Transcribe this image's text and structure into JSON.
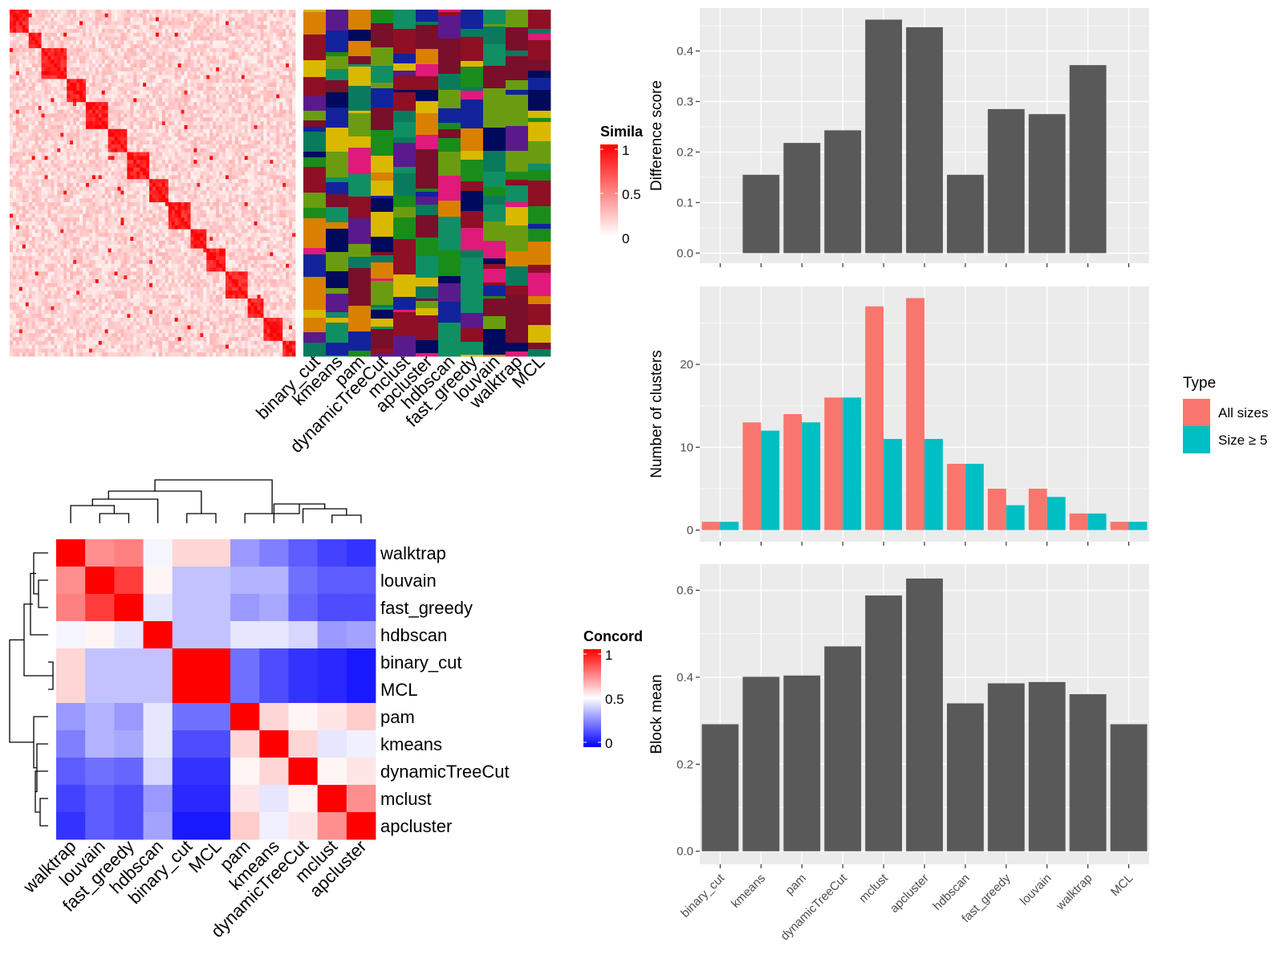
{
  "colors": {
    "panel_bg": "#ebebeb",
    "grid": "#ffffff",
    "bar": "#595959",
    "all_sizes": "#f8766d",
    "size_ge5": "#00bfc4",
    "sim_low": "#ffffff",
    "sim_high": "#ff0000",
    "conc_low": "#0000ff",
    "conc_mid": "#ffffff",
    "conc_high": "#ff0000",
    "class_palette": [
      "#0f8f63",
      "#0a7a5c",
      "#12239c",
      "#8f0f25",
      "#6a9c12",
      "#1a8c1a",
      "#e01a7a",
      "#d98000",
      "#000a5c",
      "#5a1a8c",
      "#d9b800",
      "#7a0f2a"
    ]
  },
  "similarity_heatmap": {
    "legend_title": "Simila",
    "legend_ticks": [
      "1",
      "0.5",
      "0"
    ],
    "method_labels": [
      "binary_cut",
      "kmeans",
      "pam",
      "dynamicTreeCut",
      "mclust",
      "apcluster",
      "hdbscan",
      "fast_greedy",
      "louvain",
      "walktrap",
      "MCL"
    ]
  },
  "concordance_heatmap": {
    "legend_title": "Concord",
    "legend_ticks": [
      "1",
      "0.5",
      "0"
    ],
    "methods": [
      "walktrap",
      "louvain",
      "fast_greedy",
      "hdbscan",
      "binary_cut",
      "MCL",
      "pam",
      "kmeans",
      "dynamicTreeCut",
      "mclust",
      "apcluster"
    ],
    "matrix": [
      [
        1.0,
        0.72,
        0.75,
        0.48,
        0.58,
        0.58,
        0.3,
        0.25,
        0.18,
        0.13,
        0.1
      ],
      [
        0.72,
        1.0,
        0.88,
        0.52,
        0.38,
        0.38,
        0.35,
        0.35,
        0.22,
        0.18,
        0.18
      ],
      [
        0.75,
        0.88,
        1.0,
        0.45,
        0.38,
        0.38,
        0.3,
        0.33,
        0.2,
        0.15,
        0.15
      ],
      [
        0.48,
        0.52,
        0.45,
        1.0,
        0.38,
        0.38,
        0.45,
        0.45,
        0.42,
        0.3,
        0.32
      ],
      [
        0.58,
        0.38,
        0.38,
        0.38,
        1.0,
        1.0,
        0.22,
        0.15,
        0.1,
        0.08,
        0.05
      ],
      [
        0.58,
        0.38,
        0.38,
        0.38,
        1.0,
        1.0,
        0.22,
        0.15,
        0.1,
        0.08,
        0.05
      ],
      [
        0.3,
        0.35,
        0.3,
        0.45,
        0.22,
        0.22,
        1.0,
        0.58,
        0.52,
        0.55,
        0.6
      ],
      [
        0.25,
        0.35,
        0.33,
        0.45,
        0.15,
        0.15,
        0.58,
        1.0,
        0.58,
        0.45,
        0.47
      ],
      [
        0.18,
        0.22,
        0.2,
        0.42,
        0.1,
        0.1,
        0.52,
        0.58,
        1.0,
        0.52,
        0.55
      ],
      [
        0.13,
        0.18,
        0.15,
        0.3,
        0.08,
        0.08,
        0.55,
        0.45,
        0.52,
        1.0,
        0.72
      ],
      [
        0.1,
        0.18,
        0.15,
        0.32,
        0.05,
        0.05,
        0.6,
        0.47,
        0.55,
        0.72,
        1.0
      ]
    ]
  },
  "chart_data": [
    {
      "type": "bar",
      "ylabel": "Difference score",
      "categories": [
        "binary_cut",
        "kmeans",
        "pam",
        "dynamicTreeCut",
        "mclust",
        "apcluster",
        "hdbscan",
        "fast_greedy",
        "louvain",
        "walktrap",
        "MCL"
      ],
      "values": [
        0,
        0.155,
        0.218,
        0.243,
        0.462,
        0.447,
        0.155,
        0.285,
        0.275,
        0.372,
        0
      ],
      "ylim": [
        -0.02,
        0.485
      ],
      "yticks": [
        "0.0",
        "0.1",
        "0.2",
        "0.3",
        "0.4"
      ],
      "grid": true
    },
    {
      "type": "bar",
      "ylabel": "Number of clusters",
      "legend_title": "Type",
      "legend_position": "right",
      "categories": [
        "binary_cut",
        "kmeans",
        "pam",
        "dynamicTreeCut",
        "mclust",
        "apcluster",
        "hdbscan",
        "fast_greedy",
        "louvain",
        "walktrap",
        "MCL"
      ],
      "series": [
        {
          "name": "All sizes",
          "values": [
            1,
            13,
            14,
            16,
            27,
            28,
            8,
            5,
            5,
            2,
            1
          ]
        },
        {
          "name": "Size ≥ 5",
          "values": [
            1,
            12,
            13,
            16,
            11,
            11,
            8,
            3,
            4,
            2,
            1
          ]
        }
      ],
      "ylim": [
        -1.4,
        29.4
      ],
      "yticks": [
        "0",
        "10",
        "20"
      ],
      "grid": true
    },
    {
      "type": "bar",
      "ylabel": "Block mean",
      "categories": [
        "binary_cut",
        "kmeans",
        "pam",
        "dynamicTreeCut",
        "mclust",
        "apcluster",
        "hdbscan",
        "fast_greedy",
        "louvain",
        "walktrap",
        "MCL"
      ],
      "values": [
        0.292,
        0.401,
        0.404,
        0.471,
        0.588,
        0.627,
        0.34,
        0.386,
        0.389,
        0.361,
        0.292
      ],
      "ylim": [
        -0.03,
        0.66
      ],
      "yticks": [
        "0.0",
        "0.2",
        "0.4",
        "0.6"
      ],
      "grid": true
    }
  ]
}
